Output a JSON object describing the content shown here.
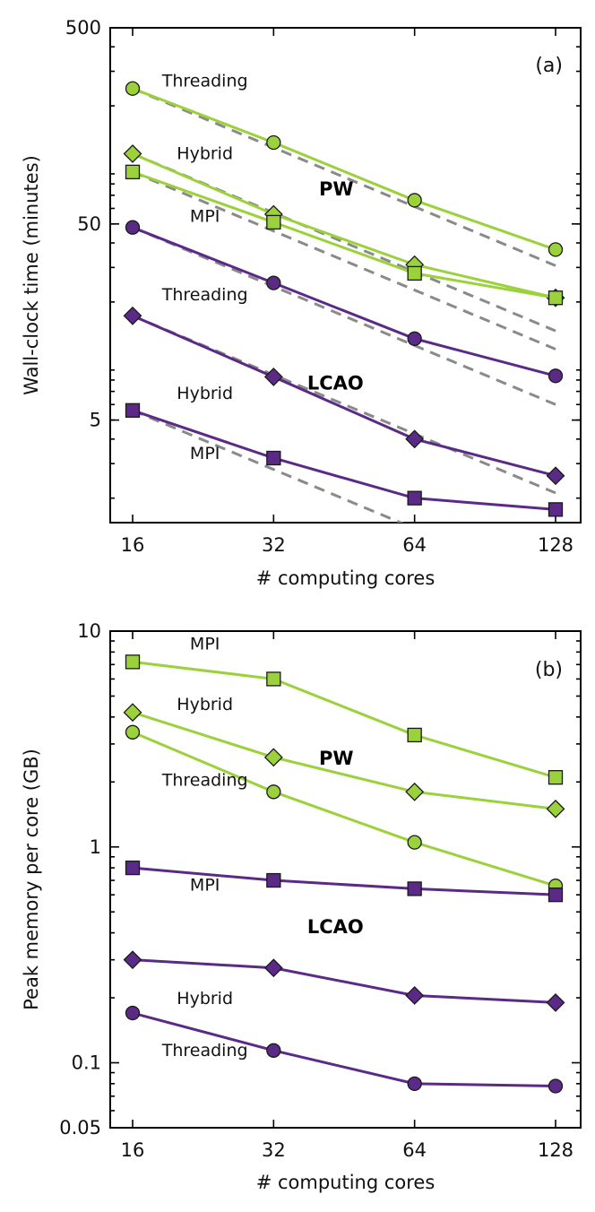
{
  "colors": {
    "pw": "#9bd13a",
    "lcao": "#5b2a86",
    "ideal": "#8a8a8a"
  },
  "chart_data": [
    {
      "type": "line",
      "panel_label": "(a)",
      "xlabel": "# computing cores",
      "ylabel": "Wall-clock time (minutes)",
      "xscale": "log2",
      "yscale": "log",
      "x": [
        16,
        32,
        64,
        128
      ],
      "xticks": [
        "16",
        "32",
        "64",
        "128"
      ],
      "ylim": [
        1.5,
        500
      ],
      "yticks": [
        500,
        50,
        5
      ],
      "ytick_labels": [
        "500",
        "50",
        "5"
      ],
      "group_labels": [
        {
          "text": "PW",
          "x": 32,
          "y": 76,
          "anchor": "start",
          "dx_cores": 1.25
        },
        {
          "text": "LCAO",
          "x": 32,
          "y": 7.8,
          "anchor": "start",
          "dx_cores": 1.18
        }
      ],
      "series": [
        {
          "name": "PW Threading",
          "group": "pw",
          "marker": "circle",
          "label": "Threading",
          "label_at": [
            16,
            270
          ],
          "values": [
            245,
            130,
            66,
            37
          ]
        },
        {
          "name": "PW Hybrid",
          "group": "pw",
          "marker": "diamond",
          "label": "Hybrid",
          "label_at": [
            16,
            115
          ],
          "values": [
            114,
            56,
            31,
            21
          ]
        },
        {
          "name": "PW MPI",
          "group": "pw",
          "marker": "square",
          "label": "MPI",
          "label_at": [
            16,
            55
          ],
          "values": [
            92,
            51,
            28,
            21
          ]
        },
        {
          "name": "LCAO Threading",
          "group": "lcao",
          "marker": "circle",
          "label": "Threading",
          "label_at": [
            16,
            22
          ],
          "values": [
            48,
            25,
            13,
            8.4
          ]
        },
        {
          "name": "LCAO Hybrid",
          "group": "lcao",
          "marker": "diamond",
          "label": "Hybrid",
          "label_at": [
            16,
            6.9
          ],
          "values": [
            17,
            8.3,
            4,
            2.6
          ]
        },
        {
          "name": "LCAO MPI",
          "group": "lcao",
          "marker": "square",
          "label": "MPI",
          "label_at": [
            16,
            3.4
          ],
          "values": [
            5.6,
            3.2,
            2,
            1.75
          ]
        }
      ],
      "ideal_scaling": {
        "style": "dashed",
        "from_values_at_16": [
          245,
          114,
          92,
          48,
          17,
          5.6
        ]
      }
    },
    {
      "type": "line",
      "panel_label": "(b)",
      "xlabel": "# computing cores",
      "ylabel": "Peak memory per core (GB)",
      "xscale": "log2",
      "yscale": "log",
      "x": [
        16,
        32,
        64,
        128
      ],
      "xticks": [
        "16",
        "32",
        "64",
        "128"
      ],
      "ylim": [
        0.05,
        10
      ],
      "yticks": [
        10,
        1,
        0.1,
        0.05
      ],
      "ytick_labels": [
        "10",
        "1",
        "0.1",
        "0.05"
      ],
      "group_labels": [
        {
          "text": "PW",
          "x": 32,
          "y": 2.6,
          "anchor": "start",
          "dx_cores": 1.25
        },
        {
          "text": "LCAO",
          "x": 32,
          "y": 0.43,
          "anchor": "start",
          "dx_cores": 1.18
        }
      ],
      "series": [
        {
          "name": "PW MPI",
          "group": "pw",
          "marker": "square",
          "label": "MPI",
          "label_at": [
            16,
            8.8
          ],
          "values": [
            7.2,
            6,
            3.3,
            2.1
          ]
        },
        {
          "name": "PW Hybrid",
          "group": "pw",
          "marker": "diamond",
          "label": "Hybrid",
          "label_at": [
            16,
            4.6
          ],
          "values": [
            4.2,
            2.6,
            1.8,
            1.5
          ]
        },
        {
          "name": "PW Threading",
          "group": "pw",
          "marker": "circle",
          "label": "Threading",
          "label_at": [
            16,
            2.05
          ],
          "values": [
            3.4,
            1.8,
            1.05,
            0.66
          ]
        },
        {
          "name": "LCAO MPI",
          "group": "lcao",
          "marker": "square",
          "label": "MPI",
          "label_at": [
            16,
            0.67
          ],
          "values": [
            0.8,
            0.7,
            0.64,
            0.6
          ]
        },
        {
          "name": "LCAO Hybrid",
          "group": "lcao",
          "marker": "diamond",
          "label": "Hybrid",
          "label_at": [
            16,
            0.2
          ],
          "values": [
            0.3,
            0.275,
            0.205,
            0.19
          ]
        },
        {
          "name": "LCAO Threading",
          "group": "lcao",
          "marker": "circle",
          "label": "Threading",
          "label_at": [
            16,
            0.115
          ],
          "values": [
            0.17,
            0.114,
            0.08,
            0.078
          ]
        }
      ]
    }
  ]
}
